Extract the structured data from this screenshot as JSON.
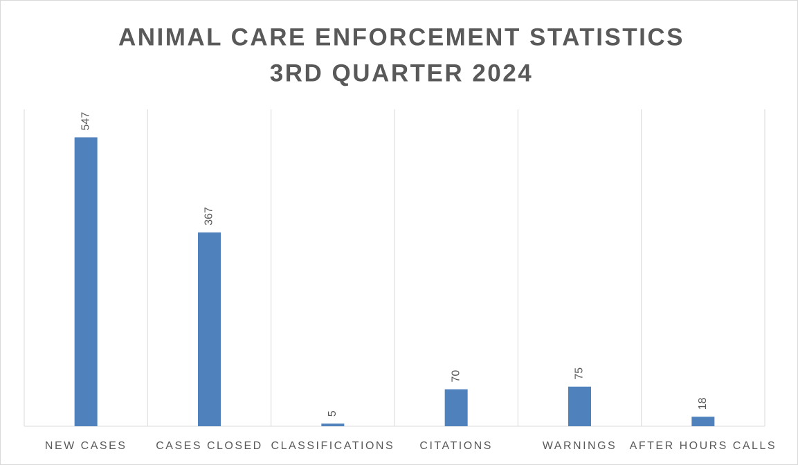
{
  "chart_data": {
    "type": "bar",
    "title": [
      "ANIMAL CARE ENFORCEMENT STATISTICS",
      "3RD QUARTER 2024"
    ],
    "categories": [
      "NEW CASES",
      "CASES CLOSED",
      "CLASSIFICATIONS",
      "CITATIONS",
      "WARNINGS",
      "AFTER HOURS CALLS"
    ],
    "values": [
      547,
      367,
      5,
      70,
      75,
      18
    ],
    "color": "#4f81bd",
    "ylim": [
      0,
      600
    ]
  }
}
